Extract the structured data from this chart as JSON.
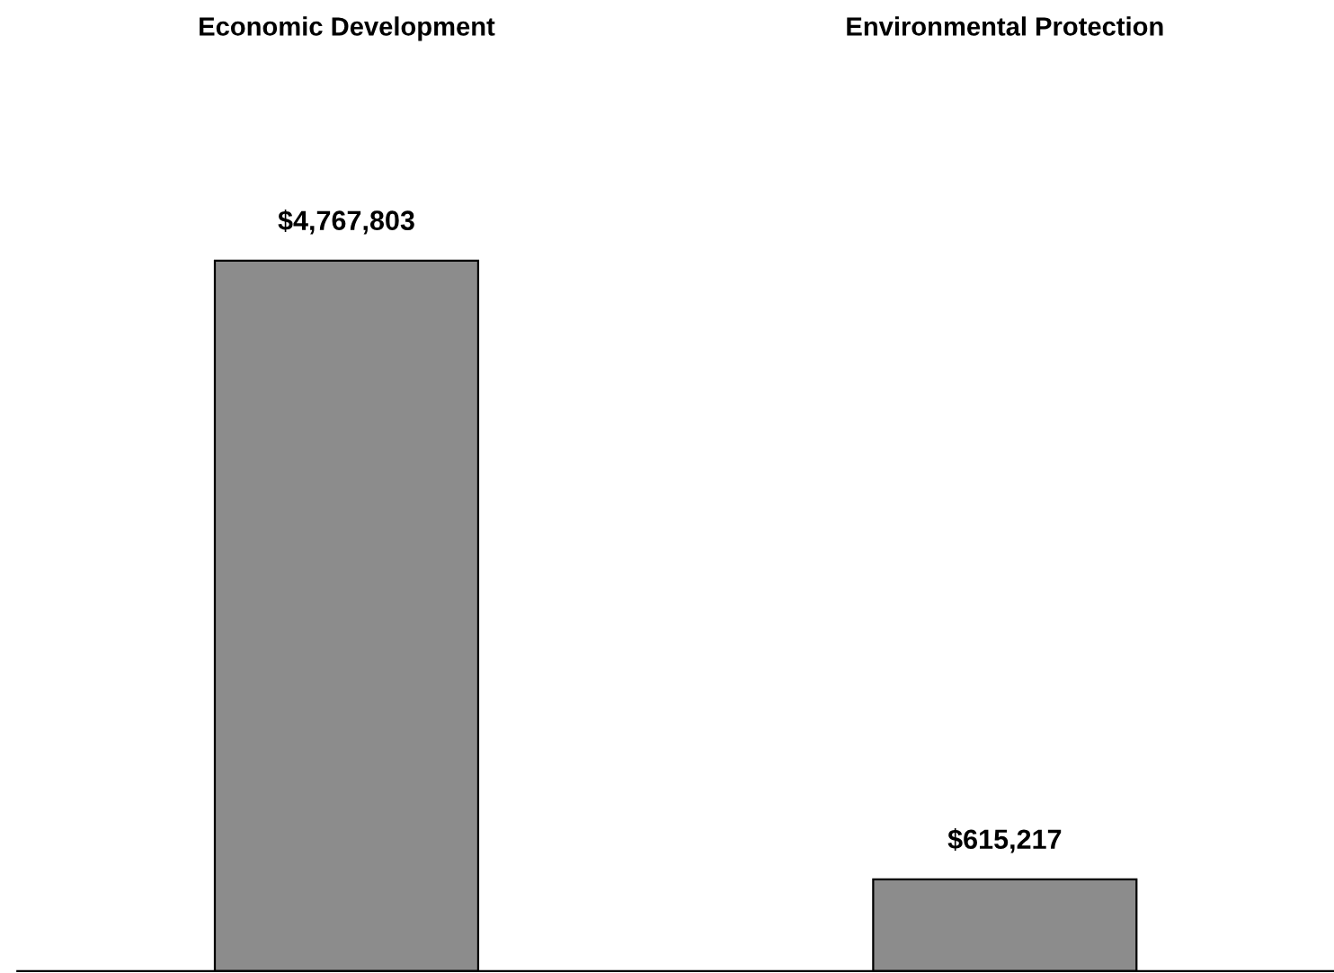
{
  "chart_data": {
    "type": "bar",
    "categories": [
      "Economic Development",
      "Environmental Protection"
    ],
    "values": [
      4767803,
      615217
    ],
    "value_labels": [
      "$4,767,803",
      "$615,217"
    ],
    "color": "#8c8c8c",
    "grid": false,
    "legend": false
  }
}
